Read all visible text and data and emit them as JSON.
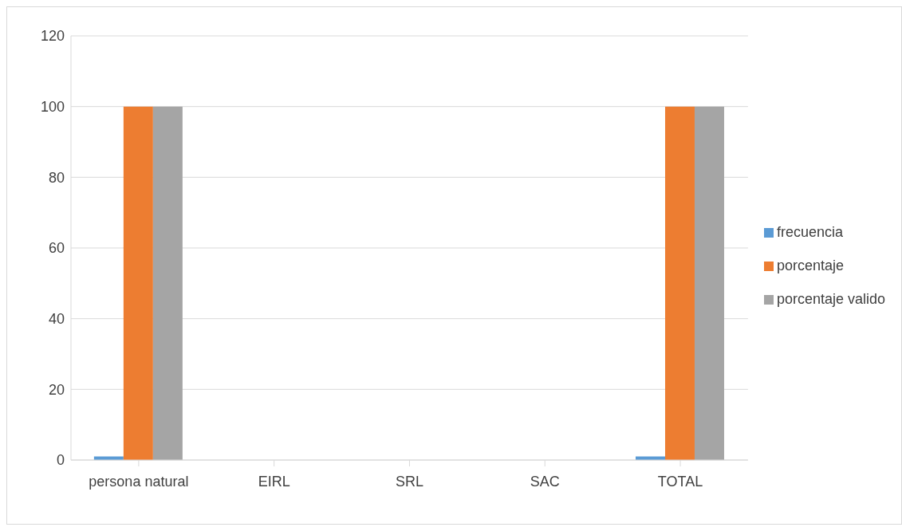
{
  "chart_data": {
    "type": "bar",
    "categories": [
      "persona natural",
      "EIRL",
      "SRL",
      "SAC",
      "TOTAL"
    ],
    "series": [
      {
        "name": "frecuencia",
        "color": "#5b9bd5",
        "values": [
          1,
          0,
          0,
          0,
          1
        ]
      },
      {
        "name": "porcentaje",
        "color": "#ed7d31",
        "values": [
          100,
          0,
          0,
          0,
          100
        ]
      },
      {
        "name": "porcentaje valido",
        "color": "#a5a5a5",
        "values": [
          100,
          0,
          0,
          0,
          100
        ]
      }
    ],
    "ylim": [
      0,
      120
    ],
    "yticks": [
      0,
      20,
      40,
      60,
      80,
      100,
      120
    ],
    "grid": "y",
    "legend": "right"
  }
}
